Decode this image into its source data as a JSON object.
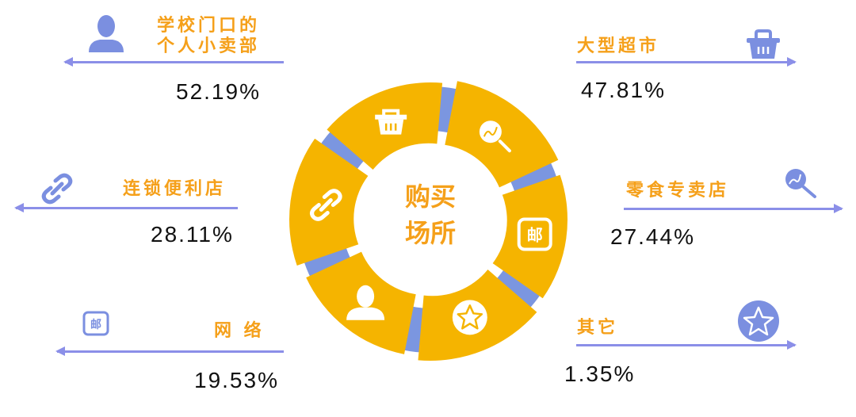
{
  "center": {
    "line1": "购买",
    "line2": "场所"
  },
  "colors": {
    "ring": "#f5b400",
    "gap": "#7b96e0",
    "title": "#f5a01a",
    "arrow": "#8b8fe8",
    "icon": "#7b8fe0"
  },
  "items": [
    {
      "title_line1": "学校门口的",
      "title_line2": "个人小卖部",
      "percent": "52.19%",
      "icon": "person-icon"
    },
    {
      "title_line1": "连锁便利店",
      "percent": "28.11%",
      "icon": "link-icon"
    },
    {
      "title_line1": "网 络",
      "percent": "19.53%",
      "icon": "mail-icon"
    },
    {
      "title_line1": "大型超市",
      "percent": "47.81%",
      "icon": "basket-icon"
    },
    {
      "title_line1": "零食专卖店",
      "percent": "27.44%",
      "icon": "lollipop-icon"
    },
    {
      "title_line1": "其它",
      "percent": "1.35%",
      "icon": "star-icon"
    }
  ]
}
